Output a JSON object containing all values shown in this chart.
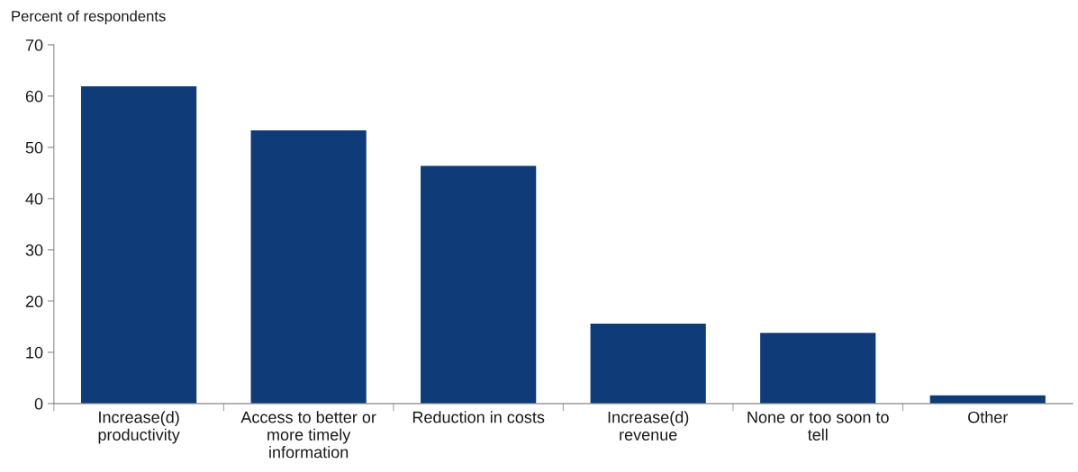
{
  "chart_data": {
    "type": "bar",
    "ylabel": "Percent of respondents",
    "categories": [
      "Increase(d)\nproductivity",
      "Access to better or\nmore timely\ninformation",
      "Reduction in costs",
      "Increase(d)\nrevenue",
      "None or too soon to\ntell",
      "Other"
    ],
    "values": [
      61.9,
      53.3,
      46.4,
      15.6,
      13.8,
      1.6
    ],
    "color": "#0f3b78",
    "ylim": [
      0,
      70
    ],
    "yticks": [
      0,
      10,
      20,
      30,
      40,
      50,
      60,
      70
    ],
    "grid": false,
    "legend": false
  }
}
